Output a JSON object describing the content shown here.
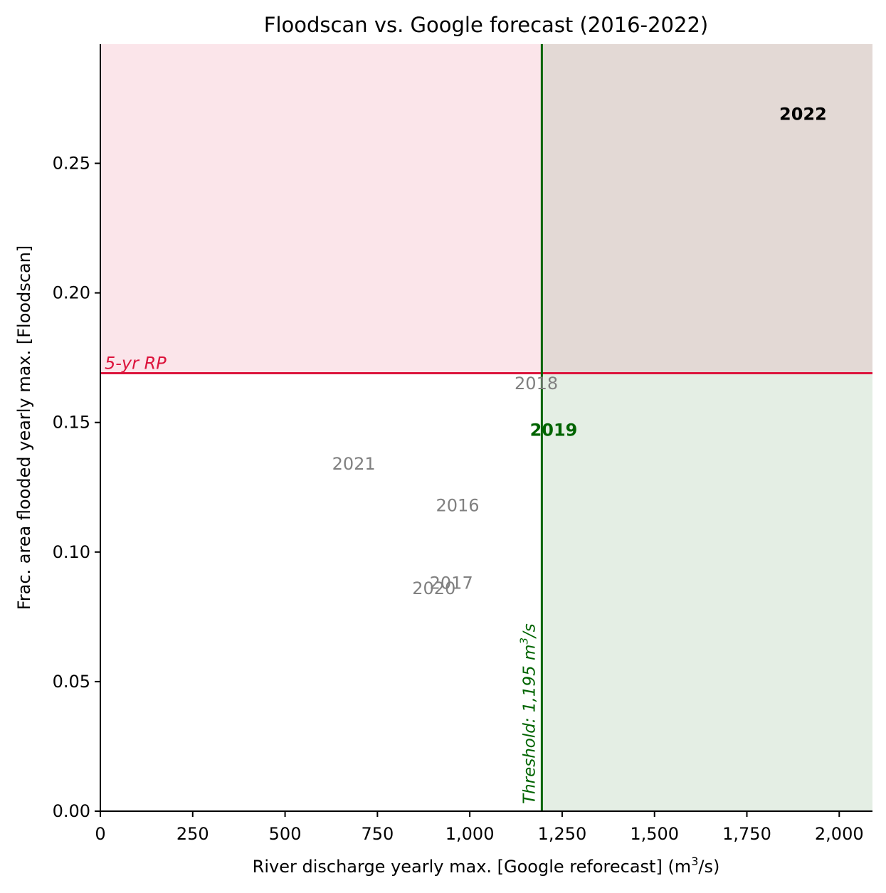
{
  "chart_data": {
    "type": "scatter",
    "title": "Floodscan vs. Google forecast (2016-2022)",
    "xlabel_main": "River discharge yearly max. [Google reforecast] (m",
    "xlabel_sup": "3",
    "xlabel_tail": "/s)",
    "ylabel": "Frac. area flooded yearly max. [Floodscan]",
    "xlim": [
      0,
      2090
    ],
    "ylim": [
      0,
      0.296
    ],
    "xticks": [
      0,
      250,
      500,
      750,
      1000,
      1250,
      1500,
      1750,
      2000
    ],
    "xtick_labels": [
      "0",
      "250",
      "500",
      "750",
      "1,000",
      "1,250",
      "1,500",
      "1,750",
      "2,000"
    ],
    "yticks": [
      0.0,
      0.05,
      0.1,
      0.15,
      0.2,
      0.25
    ],
    "ytick_labels": [
      "0.00",
      "0.05",
      "0.10",
      "0.15",
      "0.20",
      "0.25"
    ],
    "grid": false,
    "threshold": {
      "x": 1195,
      "label_main": "Threshold: 1,195 m",
      "label_sup": "3",
      "label_tail": "/s",
      "color": "#006400"
    },
    "rp": {
      "y": 0.169,
      "label": "5-yr RP",
      "color": "#dc143c"
    },
    "regions": {
      "above_rp_color": "#fbe5ea",
      "both_color": "#e3d9d5",
      "above_threshold_color": "#e4eee4"
    },
    "points": [
      {
        "year": "2016",
        "x": 967,
        "y": 0.118,
        "color": "#808080",
        "bold": false
      },
      {
        "year": "2017",
        "x": 950,
        "y": 0.088,
        "color": "#808080",
        "bold": false
      },
      {
        "year": "2018",
        "x": 1180,
        "y": 0.165,
        "color": "#808080",
        "bold": false
      },
      {
        "year": "2019",
        "x": 1227,
        "y": 0.147,
        "color": "#006400",
        "bold": true
      },
      {
        "year": "2020",
        "x": 903,
        "y": 0.086,
        "color": "#808080",
        "bold": false
      },
      {
        "year": "2021",
        "x": 686,
        "y": 0.134,
        "color": "#808080",
        "bold": false
      },
      {
        "year": "2022",
        "x": 1902,
        "y": 0.269,
        "color": "#000000",
        "bold": true
      }
    ]
  }
}
